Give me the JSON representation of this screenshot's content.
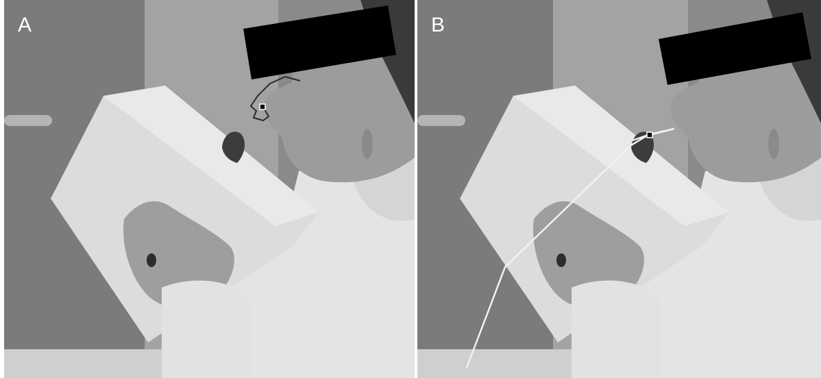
{
  "panels": [
    {
      "label": "A",
      "trajectory": "short-loop-near-nose"
    },
    {
      "label": "B",
      "trajectory": "long-line-from-box-to-nose"
    }
  ],
  "colors": {
    "background_wall": "#8f8f8f",
    "door": "#7a7a7a",
    "box": "#dcdcdc",
    "sweater": "#e6e6e6",
    "skin": "#9a9a9a",
    "censor_bar": "#000000",
    "trajectory_dark": "#2a2a2a",
    "trajectory_light": "#f2f2f2"
  }
}
